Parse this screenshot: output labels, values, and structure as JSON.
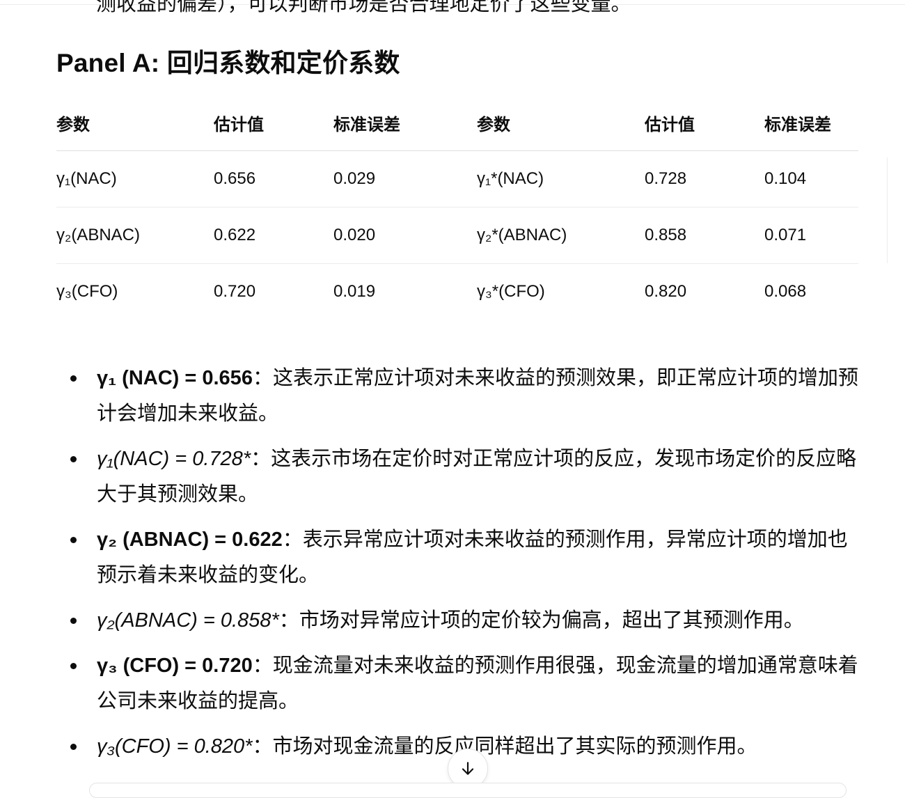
{
  "top_partial_text": "测收益的偏差），可以判断市场是否合理地定价了这些变量。",
  "section_title": "Panel A: 回归系数和定价系数",
  "table": {
    "headers": [
      "参数",
      "估计值",
      "标准误差",
      "参数",
      "估计值",
      "标准误差"
    ],
    "rows": [
      [
        "γ₁(NAC)",
        "0.656",
        "0.029",
        "γ₁*(NAC)",
        "0.728",
        "0.104"
      ],
      [
        "γ₂(ABNAC)",
        "0.622",
        "0.020",
        "γ₂*(ABNAC)",
        "0.858",
        "0.071"
      ],
      [
        "γ₃(CFO)",
        "0.720",
        "0.019",
        "γ₃*(CFO)",
        "0.820",
        "0.068"
      ]
    ]
  },
  "bullets": [
    {
      "term": "γ₁ (NAC) = 0.656",
      "text": "：这表示正常应计项对未来收益的预测效果，即正常应计项的增加预计会增加未来收益。"
    },
    {
      "term": "γ₁(NAC) = 0.728*",
      "text": "：这表示市场在定价时对正常应计项的反应，发现市场定价的反应略大于其预测效果。"
    },
    {
      "term": "γ₂ (ABNAC) = 0.622",
      "text": "：表示异常应计项对未来收益的预测作用，异常应计项的增加也预示着未来收益的变化。"
    },
    {
      "term": "γ₂(ABNAC) = 0.858*",
      "text": "：市场对异常应计项的定价较为偏高，超出了其预测作用。"
    },
    {
      "term": "γ₃ (CFO) = 0.720",
      "text": "：现金流量对未来收益的预测作用很强，现金流量的增加通常意味着公司未来收益的提高。"
    },
    {
      "term": "γ₃(CFO) = 0.820*",
      "text": "：市场对现金流量的反应同样超出了其实际的预测作用。"
    }
  ],
  "icons": {
    "scroll_down": "arrow-down-icon"
  }
}
